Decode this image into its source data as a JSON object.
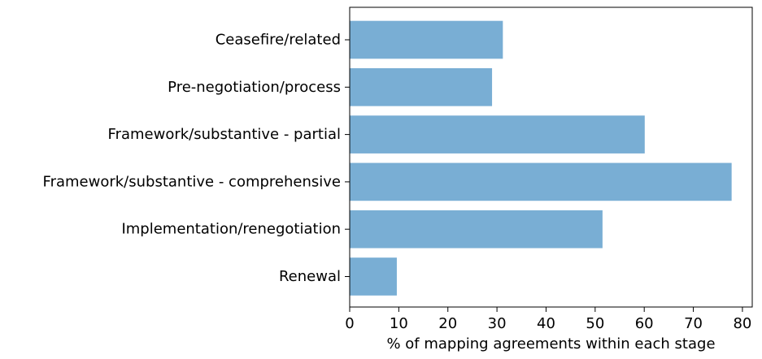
{
  "chart_data": {
    "type": "bar",
    "orientation": "horizontal",
    "categories": [
      "Ceasefire/related",
      "Pre-negotiation/process",
      "Framework/substantive - partial",
      "Framework/substantive - comprehensive",
      "Implementation/renegotiation",
      "Renewal"
    ],
    "values": [
      31.2,
      29.0,
      60.1,
      77.8,
      51.5,
      9.6
    ],
    "xlabel": "% of mapping agreements within each stage",
    "ylabel": "",
    "xlim": [
      0,
      82
    ],
    "xticks": [
      0,
      10,
      20,
      30,
      40,
      50,
      60,
      70,
      80
    ],
    "grid": false,
    "bar_color": "#79aed4"
  }
}
